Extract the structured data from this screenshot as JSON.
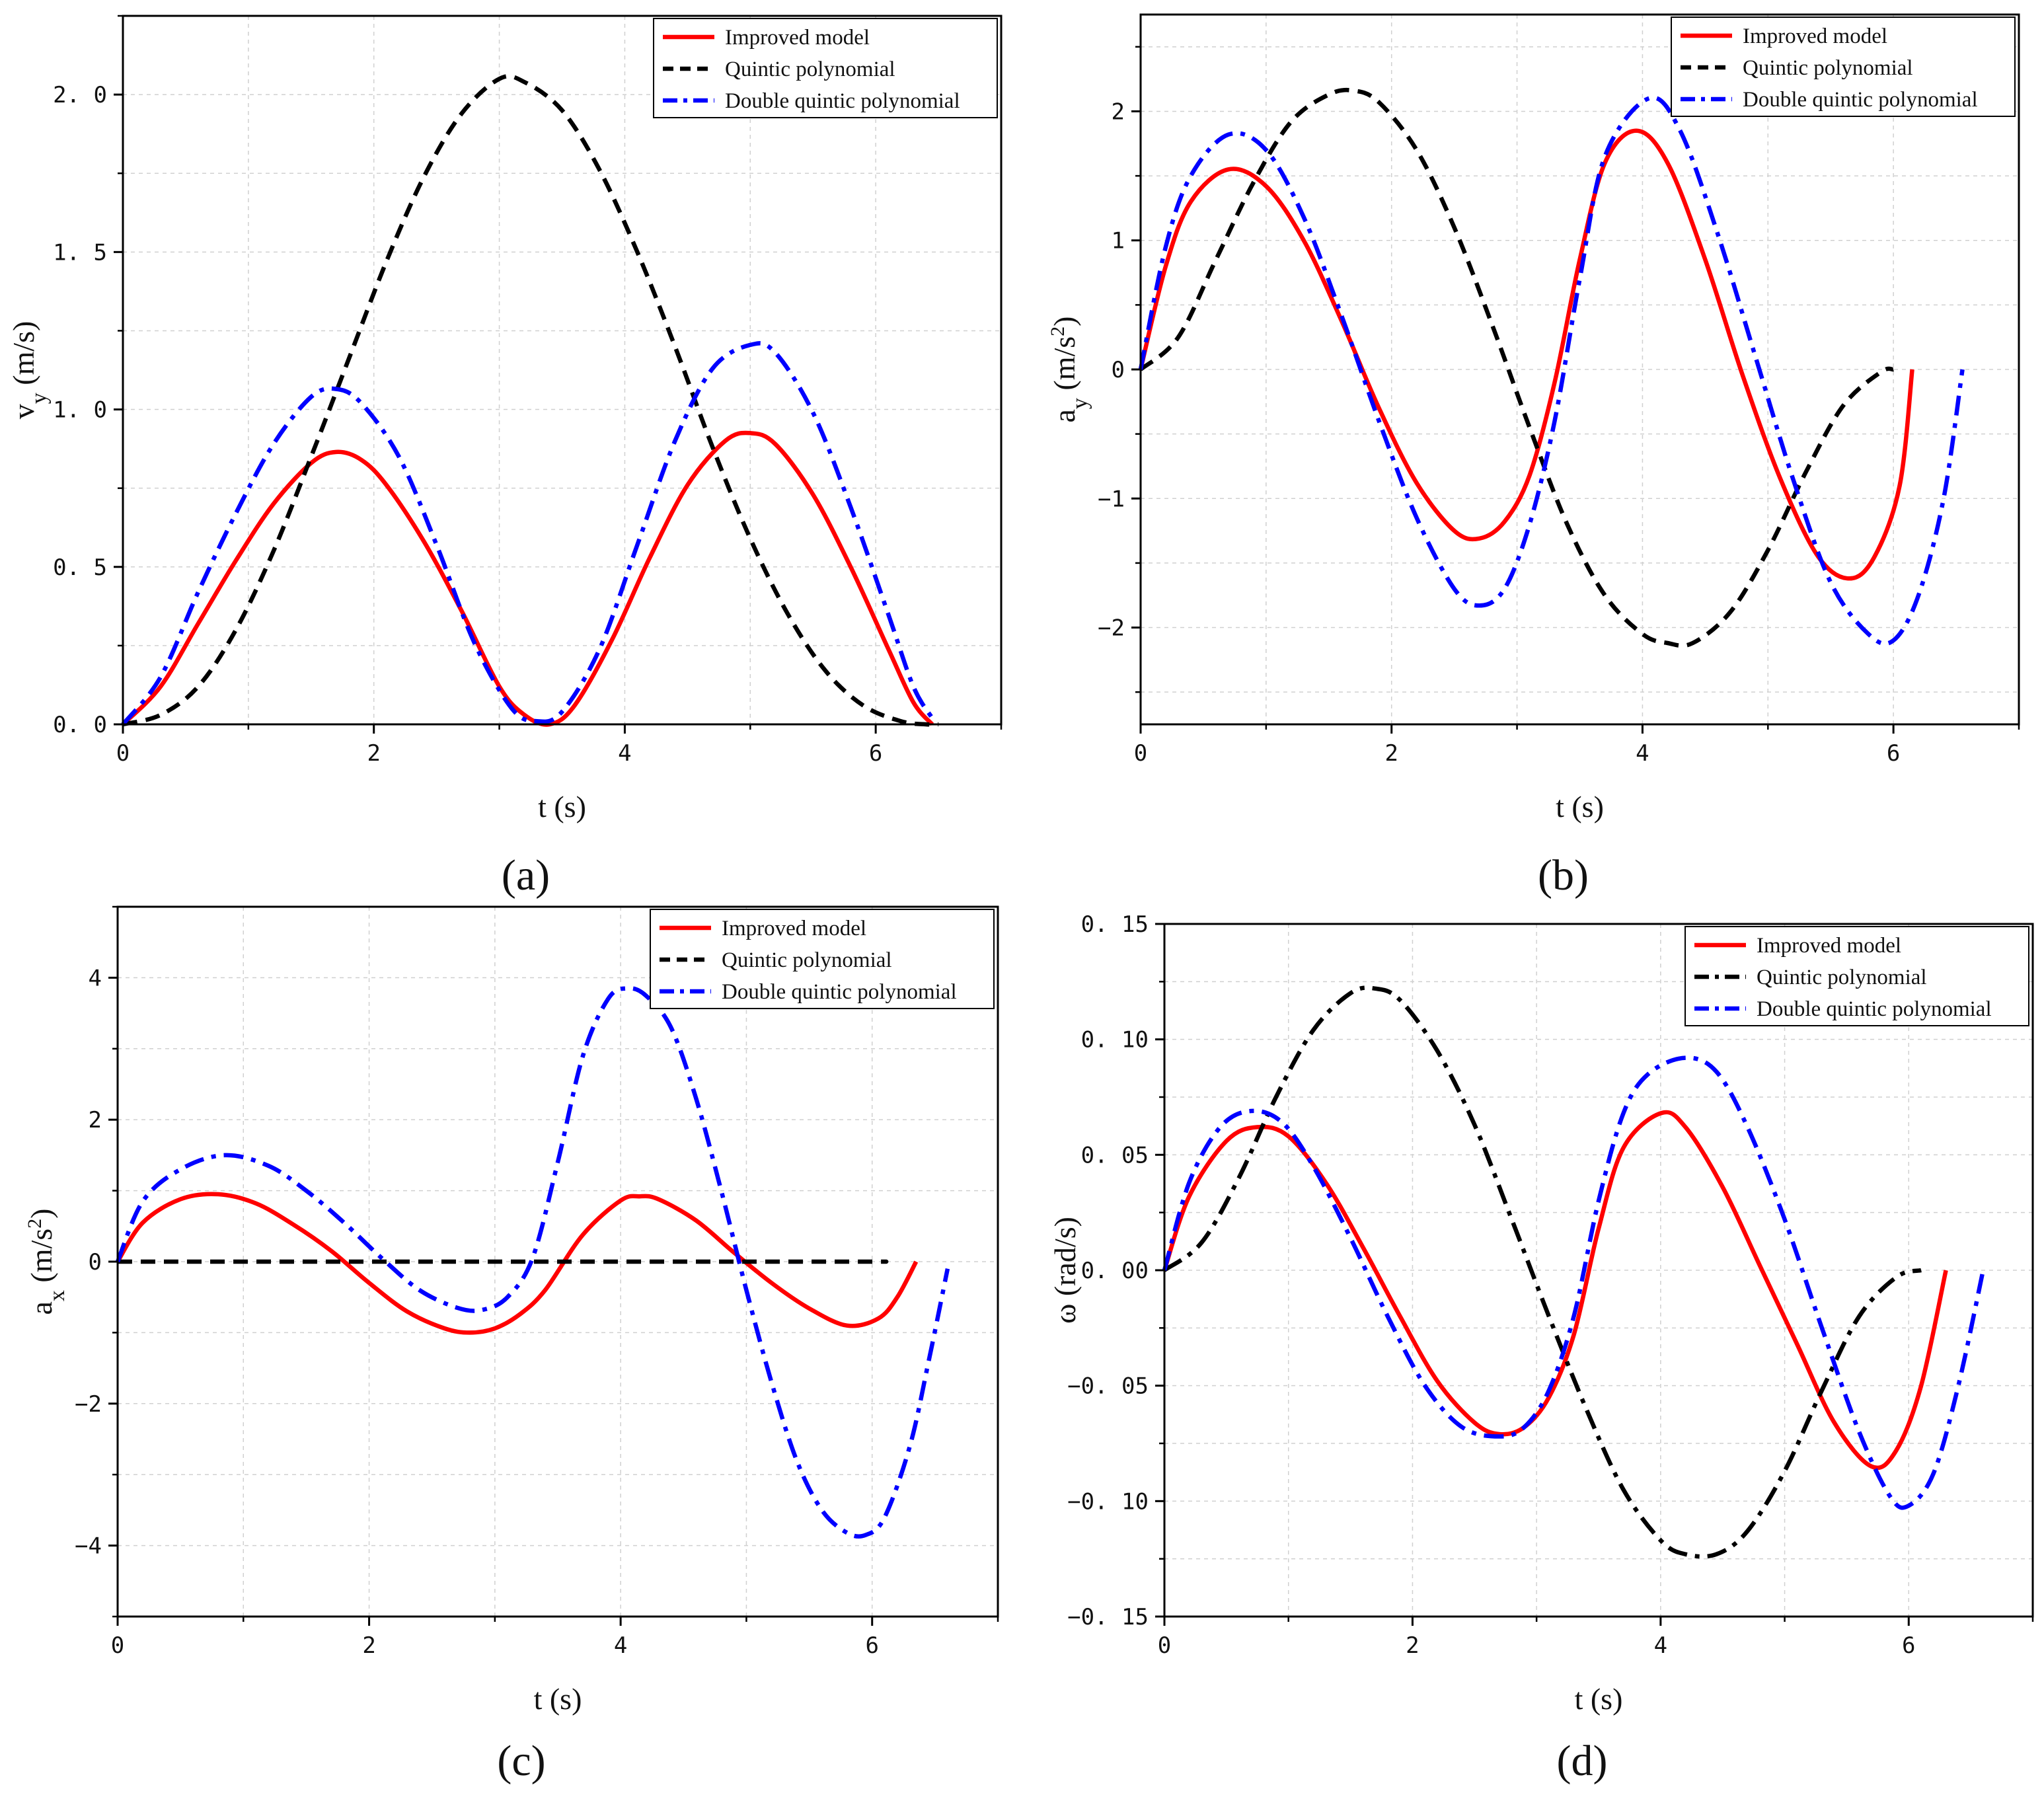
{
  "colors": {
    "improved": "#ff0000",
    "quintic": "#000000",
    "double": "#0000ff",
    "grid": "#d0d0d0"
  },
  "chart_data": [
    {
      "id": "a",
      "type": "line",
      "caption": "(a)",
      "xlabel": "t (s)",
      "ylabel": {
        "base": "v",
        "sub": "y",
        "sup": "",
        "unit_before": " (m/s",
        "unit_after": ")"
      },
      "xlim": [
        0,
        7
      ],
      "ylim": [
        0,
        2.25
      ],
      "xticks": [
        0,
        2,
        4,
        6
      ],
      "xtick_labels": [
        "0",
        "2",
        "4",
        "6"
      ],
      "yticks": [
        0,
        0.5,
        1.0,
        1.5,
        2.0
      ],
      "ytick_labels": [
        "0. 0",
        "0. 5",
        "1. 0",
        "1. 5",
        "2. 0"
      ],
      "grid": true,
      "legend": [
        "Improved model",
        "Quintic polynomial",
        "Double quintic polynomial"
      ],
      "series": [
        {
          "name": "Improved model",
          "style": "solid",
          "x": [
            0,
            0.3,
            0.6,
            0.9,
            1.2,
            1.5,
            1.7,
            1.9,
            2.1,
            2.4,
            2.7,
            3.0,
            3.2,
            3.4,
            3.6,
            3.9,
            4.2,
            4.5,
            4.8,
            5.0,
            5.2,
            5.5,
            5.8,
            6.1,
            6.3,
            6.45
          ],
          "y": [
            0,
            0.12,
            0.32,
            0.52,
            0.7,
            0.83,
            0.865,
            0.84,
            0.76,
            0.58,
            0.36,
            0.12,
            0.03,
            0.0,
            0.06,
            0.27,
            0.53,
            0.76,
            0.9,
            0.925,
            0.89,
            0.73,
            0.5,
            0.24,
            0.07,
            0.0
          ]
        },
        {
          "name": "Quintic polynomial",
          "style": "dashed",
          "x": [
            0,
            0.3,
            0.6,
            0.9,
            1.2,
            1.5,
            1.8,
            2.1,
            2.4,
            2.7,
            3.0,
            3.2,
            3.5,
            3.8,
            4.1,
            4.4,
            4.7,
            5.0,
            5.3,
            5.6,
            5.9,
            6.2,
            6.4,
            6.5
          ],
          "y": [
            0,
            0.03,
            0.12,
            0.3,
            0.55,
            0.85,
            1.16,
            1.47,
            1.74,
            1.94,
            2.05,
            2.04,
            1.95,
            1.76,
            1.5,
            1.2,
            0.88,
            0.59,
            0.35,
            0.17,
            0.06,
            0.01,
            0.0,
            0.0
          ]
        },
        {
          "name": "Double quintic polynomial",
          "style": "dashdot",
          "x": [
            0,
            0.3,
            0.6,
            0.9,
            1.2,
            1.5,
            1.7,
            1.9,
            2.2,
            2.5,
            2.8,
            3.1,
            3.3,
            3.5,
            3.8,
            4.1,
            4.4,
            4.7,
            5.0,
            5.2,
            5.5,
            5.8,
            6.1,
            6.3,
            6.45
          ],
          "y": [
            0,
            0.15,
            0.42,
            0.67,
            0.89,
            1.04,
            1.065,
            1.02,
            0.85,
            0.57,
            0.26,
            0.05,
            0.01,
            0.04,
            0.24,
            0.57,
            0.9,
            1.13,
            1.205,
            1.18,
            0.99,
            0.69,
            0.35,
            0.12,
            0.02
          ]
        }
      ]
    },
    {
      "id": "b",
      "type": "line",
      "caption": "(b)",
      "xlabel": "t (s)",
      "ylabel": {
        "base": "a",
        "sub": "y",
        "sup": "2",
        "unit_before": " (m/s",
        "unit_after": ")"
      },
      "xlim": [
        0,
        7
      ],
      "ylim": [
        -2.75,
        2.75
      ],
      "xticks": [
        0,
        2,
        4,
        6
      ],
      "xtick_labels": [
        "0",
        "2",
        "4",
        "6"
      ],
      "yticks": [
        -2,
        -1,
        0,
        1,
        2
      ],
      "ytick_labels": [
        "−2",
        "−1",
        "0",
        "1",
        "2"
      ],
      "grid": true,
      "legend": [
        "Improved model",
        "Quintic polynomial",
        "Double quintic polynomial"
      ],
      "series": [
        {
          "name": "Improved model",
          "style": "solid",
          "x": [
            0,
            0.2,
            0.4,
            0.7,
            1.0,
            1.3,
            1.6,
            1.9,
            2.2,
            2.5,
            2.7,
            2.9,
            3.1,
            3.3,
            3.5,
            3.7,
            3.95,
            4.2,
            4.5,
            4.8,
            5.1,
            5.4,
            5.65,
            5.85,
            6.05,
            6.15
          ],
          "y": [
            0,
            0.8,
            1.3,
            1.55,
            1.42,
            1.0,
            0.38,
            -0.3,
            -0.88,
            -1.25,
            -1.31,
            -1.18,
            -0.82,
            -0.1,
            0.85,
            1.6,
            1.85,
            1.6,
            0.85,
            -0.05,
            -0.85,
            -1.45,
            -1.62,
            -1.45,
            -0.9,
            0.0
          ]
        },
        {
          "name": "Quintic polynomial",
          "style": "dashed",
          "x": [
            0,
            0.3,
            0.6,
            0.9,
            1.2,
            1.5,
            1.7,
            1.9,
            2.2,
            2.5,
            2.8,
            3.1,
            3.4,
            3.7,
            4.0,
            4.2,
            4.4,
            4.7,
            5.0,
            5.3,
            5.6,
            5.9,
            6.0
          ],
          "y": [
            0,
            0.25,
            0.85,
            1.45,
            1.92,
            2.13,
            2.16,
            2.07,
            1.7,
            1.1,
            0.35,
            -0.45,
            -1.2,
            -1.75,
            -2.05,
            -2.12,
            -2.12,
            -1.88,
            -1.4,
            -0.8,
            -0.28,
            -0.02,
            0.0
          ]
        },
        {
          "name": "Double quintic polynomial",
          "style": "dashdot",
          "x": [
            0,
            0.2,
            0.4,
            0.7,
            1.0,
            1.3,
            1.6,
            1.9,
            2.2,
            2.5,
            2.7,
            2.9,
            3.1,
            3.3,
            3.5,
            3.7,
            4.05,
            4.3,
            4.6,
            4.9,
            5.2,
            5.5,
            5.8,
            6.0,
            6.2,
            6.4,
            6.55
          ],
          "y": [
            0,
            0.95,
            1.5,
            1.82,
            1.7,
            1.18,
            0.42,
            -0.4,
            -1.15,
            -1.7,
            -1.83,
            -1.7,
            -1.2,
            -0.4,
            0.7,
            1.65,
            2.1,
            1.85,
            1.05,
            0.1,
            -0.85,
            -1.65,
            -2.05,
            -2.1,
            -1.75,
            -1.0,
            0.0
          ]
        }
      ]
    },
    {
      "id": "c",
      "type": "line",
      "caption": "(c)",
      "xlabel": "t (s)",
      "ylabel": {
        "base": "a",
        "sub": "x",
        "sup": "2",
        "unit_before": " (m/s",
        "unit_after": ")"
      },
      "xlim": [
        0,
        7
      ],
      "ylim": [
        -5,
        5
      ],
      "xticks": [
        0,
        2,
        4,
        6
      ],
      "xtick_labels": [
        "0",
        "2",
        "4",
        "6"
      ],
      "yticks": [
        -4,
        -2,
        0,
        2,
        4
      ],
      "ytick_labels": [
        "−4",
        "−2",
        "0",
        "2",
        "4"
      ],
      "grid": true,
      "legend": [
        "Improved model",
        "Quintic polynomial",
        "Double quintic polynomial"
      ],
      "series": [
        {
          "name": "Improved model",
          "style": "solid",
          "x": [
            0,
            0.2,
            0.5,
            0.8,
            1.1,
            1.4,
            1.7,
            2.0,
            2.3,
            2.6,
            2.8,
            3.0,
            3.2,
            3.4,
            3.7,
            4.0,
            4.15,
            4.3,
            4.6,
            4.9,
            5.2,
            5.5,
            5.8,
            6.05,
            6.2,
            6.35
          ],
          "y": [
            0,
            0.55,
            0.88,
            0.95,
            0.82,
            0.52,
            0.15,
            -0.3,
            -0.7,
            -0.94,
            -1.0,
            -0.94,
            -0.74,
            -0.4,
            0.38,
            0.86,
            0.92,
            0.88,
            0.58,
            0.13,
            -0.3,
            -0.66,
            -0.9,
            -0.8,
            -0.5,
            0.0
          ]
        },
        {
          "name": "Quintic polynomial",
          "style": "dashed",
          "x": [
            0,
            1,
            2,
            3,
            4,
            5,
            6,
            6.1
          ],
          "y": [
            0,
            0,
            0,
            0,
            0,
            0,
            0,
            0
          ]
        },
        {
          "name": "Double quintic polynomial",
          "style": "dashdot",
          "x": [
            0,
            0.2,
            0.5,
            0.85,
            1.2,
            1.5,
            1.8,
            2.1,
            2.4,
            2.7,
            2.9,
            3.1,
            3.3,
            3.5,
            3.7,
            3.9,
            4.05,
            4.2,
            4.4,
            4.6,
            4.8,
            5.0,
            5.2,
            5.4,
            5.6,
            5.8,
            5.95,
            6.1,
            6.3,
            6.45,
            6.6
          ],
          "y": [
            0,
            0.85,
            1.3,
            1.5,
            1.35,
            1.0,
            0.55,
            0.05,
            -0.4,
            -0.65,
            -0.68,
            -0.5,
            0.05,
            1.4,
            2.9,
            3.7,
            3.85,
            3.75,
            3.3,
            2.3,
            1.0,
            -0.4,
            -1.7,
            -2.8,
            -3.5,
            -3.82,
            -3.85,
            -3.6,
            -2.6,
            -1.4,
            -0.1
          ]
        }
      ]
    },
    {
      "id": "d",
      "type": "line",
      "caption": "(d)",
      "xlabel": "t (s)",
      "ylabel": {
        "base": "ω",
        "sub": "",
        "sup": "",
        "unit_before": " (rad/s",
        "unit_after": ")"
      },
      "xlim": [
        0,
        7
      ],
      "ylim": [
        -0.15,
        0.15
      ],
      "xticks": [
        0,
        2,
        4,
        6
      ],
      "xtick_labels": [
        "0",
        "2",
        "4",
        "6"
      ],
      "yticks": [
        -0.15,
        -0.1,
        -0.05,
        0,
        0.05,
        0.1,
        0.15
      ],
      "ytick_labels": [
        "−0. 15",
        "−0. 10",
        "−0. 05",
        "0. 00",
        "0. 05",
        "0. 10",
        "0. 15"
      ],
      "grid": true,
      "legend": [
        "Improved model",
        "Quintic polynomial",
        "Double quintic polynomial"
      ],
      "series": [
        {
          "name": "Improved model",
          "style": "solid",
          "x": [
            0,
            0.2,
            0.5,
            0.75,
            1.0,
            1.3,
            1.6,
            1.9,
            2.2,
            2.5,
            2.7,
            2.9,
            3.1,
            3.3,
            3.5,
            3.7,
            4.0,
            4.2,
            4.5,
            4.8,
            5.1,
            5.4,
            5.7,
            5.9,
            6.1,
            6.3
          ],
          "y": [
            0,
            0.032,
            0.056,
            0.062,
            0.058,
            0.038,
            0.01,
            -0.02,
            -0.048,
            -0.066,
            -0.071,
            -0.068,
            -0.055,
            -0.028,
            0.018,
            0.053,
            0.068,
            0.062,
            0.036,
            0.002,
            -0.032,
            -0.066,
            -0.085,
            -0.078,
            -0.05,
            0.0
          ]
        },
        {
          "name": "Quintic polynomial",
          "style": "dashdot",
          "x": [
            0,
            0.3,
            0.6,
            0.9,
            1.2,
            1.5,
            1.7,
            1.9,
            2.2,
            2.5,
            2.8,
            3.1,
            3.4,
            3.7,
            4.0,
            4.2,
            4.45,
            4.7,
            5.0,
            5.3,
            5.6,
            5.9,
            6.1
          ],
          "y": [
            0,
            0.012,
            0.04,
            0.075,
            0.104,
            0.12,
            0.122,
            0.117,
            0.095,
            0.063,
            0.022,
            -0.02,
            -0.06,
            -0.095,
            -0.117,
            -0.123,
            -0.123,
            -0.113,
            -0.087,
            -0.052,
            -0.02,
            -0.003,
            0.0
          ]
        },
        {
          "name": "Double quintic polynomial",
          "style": "dashdot",
          "x": [
            0,
            0.2,
            0.45,
            0.7,
            0.95,
            1.2,
            1.5,
            1.8,
            2.1,
            2.4,
            2.7,
            2.9,
            3.1,
            3.3,
            3.5,
            3.7,
            3.9,
            4.2,
            4.45,
            4.7,
            5.0,
            5.3,
            5.6,
            5.85,
            6.0,
            6.2,
            6.4,
            6.6
          ],
          "y": [
            0,
            0.038,
            0.062,
            0.069,
            0.064,
            0.045,
            0.014,
            -0.02,
            -0.05,
            -0.068,
            -0.072,
            -0.068,
            -0.052,
            -0.02,
            0.03,
            0.068,
            0.085,
            0.092,
            0.086,
            0.062,
            0.022,
            -0.025,
            -0.07,
            -0.098,
            -0.102,
            -0.088,
            -0.05,
            0.0
          ]
        }
      ]
    }
  ]
}
